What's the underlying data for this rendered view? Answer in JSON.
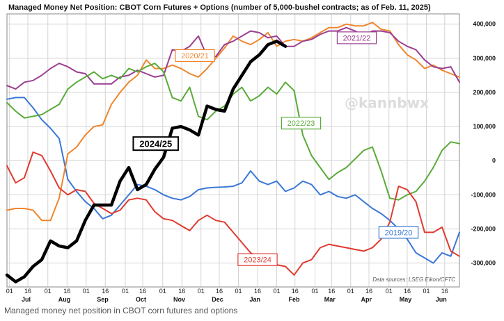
{
  "caption": "Managed money net position in CBOT corn futures and options",
  "chart_data": {
    "type": "line",
    "title": "Managed Money Net Position: CBOT Corn Futures + Options (number of 5,000-bushel contracts; as of Feb. 11, 2025)",
    "source": "Data sources: LSEG Eikon/CFTC",
    "watermark": "@kannbwx",
    "xlabel": "",
    "ylabel": "",
    "ylim": [
      -370000,
      430000
    ],
    "yticks": [
      {
        "value": 400000,
        "label": "400,000"
      },
      {
        "value": 300000,
        "label": "300,000"
      },
      {
        "value": 200000,
        "label": "200,000"
      },
      {
        "value": 100000,
        "label": "100,000"
      },
      {
        "value": 0,
        "label": "0"
      },
      {
        "value": -100000,
        "label": "-100,000"
      },
      {
        "value": -200000,
        "label": "-200,000"
      },
      {
        "value": -300000,
        "label": "-300,000"
      }
    ],
    "x_axis_note": "x = week index; 0 = first week of July, 52 = end of June",
    "xlim": [
      0,
      52
    ],
    "day_ticks": [
      {
        "x": 0.3,
        "label": "01"
      },
      {
        "x": 2.4,
        "label": "16"
      },
      {
        "x": 4.7,
        "label": "01"
      },
      {
        "x": 6.9,
        "label": "16"
      },
      {
        "x": 9.1,
        "label": "01"
      },
      {
        "x": 11.3,
        "label": "16"
      },
      {
        "x": 13.6,
        "label": "01"
      },
      {
        "x": 15.6,
        "label": "16"
      },
      {
        "x": 17.9,
        "label": "01"
      },
      {
        "x": 20.1,
        "label": "16"
      },
      {
        "x": 22.3,
        "label": "01"
      },
      {
        "x": 24.4,
        "label": "16"
      },
      {
        "x": 26.6,
        "label": "01"
      },
      {
        "x": 28.8,
        "label": "16"
      },
      {
        "x": 31.0,
        "label": "01"
      },
      {
        "x": 33.1,
        "label": "16"
      },
      {
        "x": 35.4,
        "label": "01"
      },
      {
        "x": 37.3,
        "label": "16"
      },
      {
        "x": 39.5,
        "label": "01"
      },
      {
        "x": 41.6,
        "label": "16"
      },
      {
        "x": 43.9,
        "label": "01"
      },
      {
        "x": 46.0,
        "label": "16"
      },
      {
        "x": 48.2,
        "label": "01"
      },
      {
        "x": 50.3,
        "label": "16"
      }
    ],
    "months": [
      {
        "x": 2.2,
        "label": "Jul"
      },
      {
        "x": 6.6,
        "label": "Aug"
      },
      {
        "x": 11.0,
        "label": "Sep"
      },
      {
        "x": 15.4,
        "label": "Oct"
      },
      {
        "x": 19.8,
        "label": "Nov"
      },
      {
        "x": 24.2,
        "label": "Dec"
      },
      {
        "x": 28.5,
        "label": "Jan"
      },
      {
        "x": 33.0,
        "label": "Feb"
      },
      {
        "x": 37.1,
        "label": "Mar"
      },
      {
        "x": 41.3,
        "label": "Apr"
      },
      {
        "x": 45.8,
        "label": "May"
      },
      {
        "x": 49.9,
        "label": "Jun"
      }
    ],
    "series": [
      {
        "name": "2019/20",
        "color": "#3a78d6",
        "width": 2,
        "label_at": [
          45.0,
          -210000
        ],
        "x": [
          0,
          1,
          2,
          3,
          4,
          5,
          6,
          7,
          8,
          9,
          10,
          11,
          12,
          13,
          14,
          15,
          16,
          17,
          18,
          19,
          20,
          21,
          22,
          23,
          24,
          25,
          26,
          27,
          28,
          29,
          30,
          31,
          32,
          33,
          34,
          35,
          36,
          37,
          38,
          39,
          40,
          41,
          42,
          43,
          44,
          45,
          46,
          47,
          48,
          49,
          50,
          51,
          52
        ],
        "y": [
          180000,
          185000,
          185000,
          155000,
          120000,
          95000,
          65000,
          -55000,
          -90000,
          -120000,
          -140000,
          -170000,
          -160000,
          -130000,
          -100000,
          -70000,
          -75000,
          -85000,
          -100000,
          -110000,
          -115000,
          -105000,
          -85000,
          -80000,
          -78000,
          -77000,
          -75000,
          -65000,
          -30000,
          -60000,
          -70000,
          -60000,
          -90000,
          -80000,
          -60000,
          -70000,
          -100000,
          -90000,
          -105000,
          -110000,
          -100000,
          -120000,
          -140000,
          -155000,
          -175000,
          -200000,
          -230000,
          -270000,
          -285000,
          -300000,
          -270000,
          -280000,
          -210000
        ]
      },
      {
        "name": "2020/21",
        "color": "#f0862e",
        "width": 2,
        "label_at": [
          21.6,
          308000
        ],
        "x": [
          0,
          1,
          2,
          3,
          4,
          5,
          6,
          7,
          8,
          9,
          10,
          11,
          12,
          13,
          14,
          15,
          16,
          17,
          18,
          19,
          20,
          21,
          22,
          23,
          24,
          25,
          26,
          27,
          28,
          29,
          30,
          31,
          32,
          33,
          34,
          35,
          36,
          37,
          38,
          39,
          40,
          41,
          42,
          43,
          44,
          45,
          46,
          47,
          48,
          49,
          50,
          51,
          52
        ],
        "y": [
          -145000,
          -140000,
          -140000,
          -145000,
          -175000,
          -175000,
          -110000,
          20000,
          40000,
          75000,
          100000,
          105000,
          165000,
          200000,
          230000,
          250000,
          295000,
          270000,
          270000,
          280000,
          270000,
          255000,
          245000,
          270000,
          300000,
          330000,
          365000,
          350000,
          340000,
          355000,
          375000,
          335000,
          350000,
          355000,
          350000,
          360000,
          375000,
          390000,
          390000,
          400000,
          395000,
          395000,
          405000,
          385000,
          380000,
          340000,
          310000,
          295000,
          270000,
          280000,
          265000,
          255000,
          245000
        ]
      },
      {
        "name": "2021/22",
        "color": "#9b3f92",
        "width": 2,
        "label_at": [
          40.2,
          360000
        ],
        "x": [
          0,
          1,
          2,
          3,
          4,
          5,
          6,
          7,
          8,
          9,
          10,
          11,
          12,
          13,
          14,
          15,
          16,
          17,
          18,
          19,
          20,
          21,
          22,
          23,
          24,
          25,
          26,
          27,
          28,
          29,
          30,
          31,
          32,
          33,
          34,
          35,
          36,
          37,
          38,
          39,
          40,
          41,
          42,
          43,
          44,
          45,
          46,
          47,
          48,
          49,
          50,
          51,
          52
        ],
        "y": [
          220000,
          210000,
          230000,
          235000,
          250000,
          270000,
          285000,
          275000,
          260000,
          255000,
          225000,
          225000,
          225000,
          245000,
          250000,
          265000,
          255000,
          245000,
          250000,
          325000,
          320000,
          335000,
          365000,
          305000,
          305000,
          340000,
          350000,
          365000,
          380000,
          375000,
          360000,
          365000,
          335000,
          335000,
          350000,
          355000,
          370000,
          380000,
          380000,
          390000,
          380000,
          365000,
          380000,
          380000,
          375000,
          350000,
          335000,
          325000,
          295000,
          275000,
          270000,
          275000,
          230000
        ]
      },
      {
        "name": "2022/23",
        "color": "#5aaa3a",
        "width": 2,
        "label_at": [
          33.8,
          110000
        ],
        "x": [
          0,
          1,
          2,
          3,
          4,
          5,
          6,
          7,
          8,
          9,
          10,
          11,
          12,
          13,
          14,
          15,
          16,
          17,
          18,
          19,
          20,
          21,
          22,
          23,
          24,
          25,
          26,
          27,
          28,
          29,
          30,
          31,
          32,
          33,
          34,
          35,
          36,
          37,
          38,
          39,
          40,
          41,
          42,
          43,
          44,
          45,
          46,
          47,
          48,
          49,
          50,
          51,
          52
        ],
        "y": [
          170000,
          145000,
          125000,
          130000,
          135000,
          150000,
          165000,
          210000,
          230000,
          245000,
          260000,
          240000,
          250000,
          240000,
          270000,
          260000,
          275000,
          285000,
          260000,
          185000,
          175000,
          215000,
          130000,
          120000,
          145000,
          160000,
          195000,
          215000,
          175000,
          190000,
          215000,
          195000,
          230000,
          205000,
          75000,
          15000,
          -20000,
          -55000,
          -35000,
          -20000,
          5000,
          30000,
          40000,
          -30000,
          -110000,
          -115000,
          -100000,
          -90000,
          -60000,
          -20000,
          30000,
          55000,
          50000
        ]
      },
      {
        "name": "2023/24",
        "color": "#e03a30",
        "width": 2,
        "label_at": [
          28.8,
          -290000
        ],
        "x": [
          0,
          1,
          2,
          3,
          4,
          5,
          6,
          7,
          8,
          9,
          10,
          11,
          12,
          13,
          14,
          15,
          16,
          17,
          18,
          19,
          20,
          21,
          22,
          23,
          24,
          25,
          26,
          27,
          28,
          29,
          30,
          31,
          32,
          33,
          34,
          35,
          36,
          37,
          38,
          39,
          40,
          41,
          42,
          43,
          44,
          45,
          46,
          47,
          48,
          49,
          50,
          51,
          52
        ],
        "y": [
          -15000,
          -65000,
          -50000,
          25000,
          15000,
          -30000,
          -80000,
          -100000,
          -85000,
          -90000,
          -125000,
          -140000,
          -155000,
          -145000,
          -115000,
          -110000,
          -115000,
          -150000,
          -170000,
          -175000,
          -190000,
          -205000,
          -175000,
          -160000,
          -175000,
          -180000,
          -210000,
          -240000,
          -270000,
          -285000,
          -300000,
          -305000,
          -310000,
          -335000,
          -300000,
          -290000,
          -255000,
          -245000,
          -250000,
          -255000,
          -260000,
          -265000,
          -255000,
          -230000,
          -180000,
          -75000,
          -85000,
          -120000,
          -210000,
          -210000,
          -195000,
          -265000,
          -280000
        ]
      },
      {
        "name": "2024/25",
        "color": "#000000",
        "width": 4.5,
        "label_at": [
          17.1,
          50000
        ],
        "x": [
          0,
          1,
          2,
          3,
          4,
          5,
          6,
          7,
          8,
          9,
          10,
          11,
          12,
          13,
          14,
          15,
          16,
          17,
          18,
          19,
          20,
          21,
          22,
          23,
          24,
          25,
          26,
          27,
          28,
          29,
          30,
          31,
          32
        ],
        "y": [
          -335000,
          -355000,
          -340000,
          -310000,
          -290000,
          -235000,
          -250000,
          -255000,
          -235000,
          -175000,
          -130000,
          -130000,
          -130000,
          -60000,
          -20000,
          -85000,
          -70000,
          -25000,
          10000,
          95000,
          100000,
          90000,
          75000,
          160000,
          150000,
          145000,
          210000,
          250000,
          290000,
          310000,
          340000,
          350000,
          335000
        ]
      }
    ]
  }
}
